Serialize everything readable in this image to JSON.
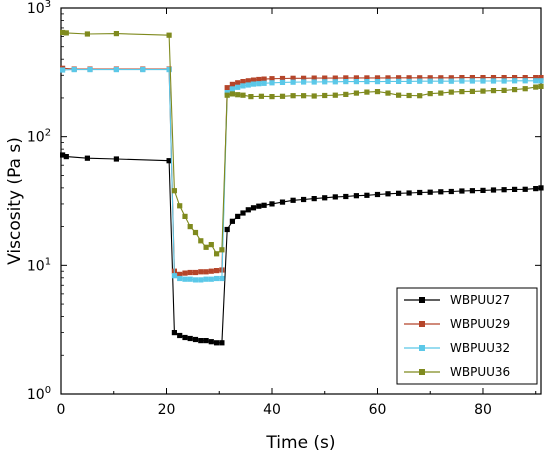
{
  "chart_data": {
    "type": "line",
    "title": "",
    "xlabel": "Time (s)",
    "ylabel": "Viscosity (Pa s)",
    "xlim": [
      0,
      91
    ],
    "ylim": [
      1,
      1000
    ],
    "yscale": "log",
    "grid": false,
    "legend_position": "bottom-right",
    "x_ticks": [
      {
        "value": 0,
        "label": "0"
      },
      {
        "value": 20,
        "label": "20"
      },
      {
        "value": 40,
        "label": "40"
      },
      {
        "value": 60,
        "label": "60"
      },
      {
        "value": 80,
        "label": "80"
      }
    ],
    "y_ticks": [
      {
        "value": 1,
        "base": "10",
        "exp": "0"
      },
      {
        "value": 10,
        "base": "10",
        "exp": "1"
      },
      {
        "value": 100,
        "base": "10",
        "exp": "2"
      },
      {
        "value": 1000,
        "base": "10",
        "exp": "3"
      }
    ],
    "series": [
      {
        "name": "WBPUU27",
        "color": "#000000",
        "points": [
          [
            0.3,
            72
          ],
          [
            1,
            70
          ],
          [
            5,
            68
          ],
          [
            10.5,
            67
          ],
          [
            20.5,
            65
          ],
          [
            21.5,
            3.0
          ],
          [
            22.5,
            2.85
          ],
          [
            23.5,
            2.75
          ],
          [
            24.5,
            2.7
          ],
          [
            25.5,
            2.65
          ],
          [
            26.5,
            2.6
          ],
          [
            27.5,
            2.6
          ],
          [
            28.5,
            2.55
          ],
          [
            29.5,
            2.5
          ],
          [
            30.5,
            2.5
          ],
          [
            31.5,
            19
          ],
          [
            32.5,
            22
          ],
          [
            33.5,
            24
          ],
          [
            34.5,
            25.5
          ],
          [
            35.5,
            27
          ],
          [
            36.5,
            28
          ],
          [
            37.5,
            28.8
          ],
          [
            38.5,
            29.3
          ],
          [
            40,
            30
          ],
          [
            42,
            31
          ],
          [
            44,
            32
          ],
          [
            46,
            32.5
          ],
          [
            48,
            33
          ],
          [
            50,
            33.5
          ],
          [
            52,
            34
          ],
          [
            54,
            34.3
          ],
          [
            56,
            34.8
          ],
          [
            58,
            35
          ],
          [
            60,
            35.5
          ],
          [
            62,
            36
          ],
          [
            64,
            36.3
          ],
          [
            66,
            36.5
          ],
          [
            68,
            36.8
          ],
          [
            70,
            37
          ],
          [
            72,
            37.3
          ],
          [
            74,
            37.5
          ],
          [
            76,
            37.8
          ],
          [
            78,
            38
          ],
          [
            80,
            38.2
          ],
          [
            82,
            38.5
          ],
          [
            84,
            38.7
          ],
          [
            86,
            38.9
          ],
          [
            88,
            39
          ],
          [
            90,
            39.5
          ],
          [
            91,
            40
          ]
        ]
      },
      {
        "name": "WBPUU29",
        "color": "#b5452a",
        "points": [
          [
            0.3,
            340
          ],
          [
            2.5,
            335
          ],
          [
            5.5,
            335
          ],
          [
            10.5,
            335
          ],
          [
            15.5,
            335
          ],
          [
            20.5,
            335
          ],
          [
            21.5,
            9.0
          ],
          [
            22.5,
            8.5
          ],
          [
            23.5,
            8.7
          ],
          [
            24.5,
            8.8
          ],
          [
            25.5,
            8.8
          ],
          [
            26.5,
            8.9
          ],
          [
            27.5,
            8.9
          ],
          [
            28.5,
            9.0
          ],
          [
            29.5,
            9.1
          ],
          [
            30.5,
            9.2
          ],
          [
            31.5,
            240
          ],
          [
            32.5,
            255
          ],
          [
            33.5,
            262
          ],
          [
            34.5,
            268
          ],
          [
            35.5,
            272
          ],
          [
            36.5,
            275
          ],
          [
            37.5,
            278
          ],
          [
            38.5,
            280
          ],
          [
            40,
            282
          ],
          [
            42,
            283
          ],
          [
            44,
            284
          ],
          [
            46,
            284
          ],
          [
            48,
            285
          ],
          [
            50,
            285
          ],
          [
            52,
            285
          ],
          [
            54,
            286
          ],
          [
            56,
            286
          ],
          [
            58,
            286
          ],
          [
            60,
            286
          ],
          [
            62,
            286
          ],
          [
            64,
            287
          ],
          [
            66,
            287
          ],
          [
            68,
            287
          ],
          [
            70,
            287
          ],
          [
            72,
            287
          ],
          [
            74,
            287
          ],
          [
            76,
            288
          ],
          [
            78,
            288
          ],
          [
            80,
            288
          ],
          [
            82,
            288
          ],
          [
            84,
            288
          ],
          [
            86,
            288
          ],
          [
            88,
            288
          ],
          [
            90,
            288
          ],
          [
            91,
            288
          ]
        ]
      },
      {
        "name": "WBPUU32",
        "color": "#5bc8e8",
        "points": [
          [
            0.3,
            330
          ],
          [
            2.5,
            332
          ],
          [
            5.5,
            332
          ],
          [
            10.5,
            332
          ],
          [
            15.5,
            332
          ],
          [
            20.5,
            332
          ],
          [
            21.5,
            8.3
          ],
          [
            22.5,
            7.9
          ],
          [
            23.5,
            7.8
          ],
          [
            24.5,
            7.8
          ],
          [
            25.5,
            7.7
          ],
          [
            26.5,
            7.7
          ],
          [
            27.5,
            7.8
          ],
          [
            28.5,
            7.8
          ],
          [
            29.5,
            7.9
          ],
          [
            30.5,
            7.9
          ],
          [
            31.5,
            220
          ],
          [
            32.5,
            235
          ],
          [
            33.5,
            242
          ],
          [
            34.5,
            248
          ],
          [
            35.5,
            252
          ],
          [
            36.5,
            256
          ],
          [
            37.5,
            258
          ],
          [
            38.5,
            260
          ],
          [
            40,
            262
          ],
          [
            42,
            264
          ],
          [
            44,
            265
          ],
          [
            46,
            266
          ],
          [
            48,
            266
          ],
          [
            50,
            267
          ],
          [
            52,
            267
          ],
          [
            54,
            268
          ],
          [
            56,
            268
          ],
          [
            58,
            268
          ],
          [
            60,
            268
          ],
          [
            62,
            269
          ],
          [
            64,
            269
          ],
          [
            66,
            269
          ],
          [
            68,
            270
          ],
          [
            70,
            270
          ],
          [
            72,
            270
          ],
          [
            74,
            270
          ],
          [
            76,
            271
          ],
          [
            78,
            271
          ],
          [
            80,
            271
          ],
          [
            82,
            271
          ],
          [
            84,
            271
          ],
          [
            86,
            272
          ],
          [
            88,
            272
          ],
          [
            90,
            272
          ],
          [
            91,
            272
          ]
        ]
      },
      {
        "name": "WBPUU36",
        "color": "#7f8a1e",
        "points": [
          [
            0.3,
            645
          ],
          [
            1,
            640
          ],
          [
            5,
            628
          ],
          [
            10.5,
            632
          ],
          [
            20.5,
            615
          ],
          [
            21.5,
            38
          ],
          [
            22.5,
            29
          ],
          [
            23.5,
            24
          ],
          [
            24.5,
            20
          ],
          [
            25.5,
            18
          ],
          [
            26.5,
            15.5
          ],
          [
            27.5,
            13.8
          ],
          [
            28.5,
            14.5
          ],
          [
            29.5,
            12.3
          ],
          [
            30.5,
            13.2
          ],
          [
            31.5,
            210
          ],
          [
            32.5,
            215
          ],
          [
            33.5,
            212
          ],
          [
            34.5,
            210
          ],
          [
            36,
            205
          ],
          [
            38,
            206
          ],
          [
            40,
            205
          ],
          [
            42,
            206
          ],
          [
            44,
            208
          ],
          [
            46,
            208
          ],
          [
            48,
            207
          ],
          [
            50,
            209
          ],
          [
            52,
            210
          ],
          [
            54,
            213
          ],
          [
            56,
            218
          ],
          [
            58,
            222
          ],
          [
            60,
            224
          ],
          [
            62,
            218
          ],
          [
            64,
            210
          ],
          [
            66,
            209
          ],
          [
            68,
            208
          ],
          [
            70,
            216
          ],
          [
            72,
            218
          ],
          [
            74,
            222
          ],
          [
            76,
            224
          ],
          [
            78,
            225
          ],
          [
            80,
            226
          ],
          [
            82,
            228
          ],
          [
            84,
            229
          ],
          [
            86,
            232
          ],
          [
            88,
            236
          ],
          [
            90,
            243
          ],
          [
            91,
            246
          ]
        ]
      }
    ]
  }
}
